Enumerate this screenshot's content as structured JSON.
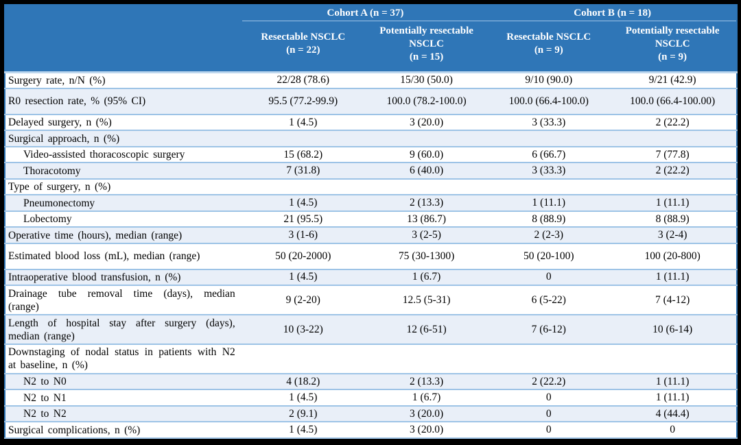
{
  "colors": {
    "header_bg": "#2F76B7",
    "header_text": "#FFFFFF",
    "band_bg": "#E9EFF8",
    "row_border": "#9DC3E6",
    "outer_border": "#2E75B6",
    "frame_bg": "#000000",
    "body_text": "#000000"
  },
  "table": {
    "cohorts": [
      {
        "label": "Cohort A (n = 37)"
      },
      {
        "label": "Cohort B (n = 18)"
      }
    ],
    "columns": [
      {
        "name": "Resectable NSCLC",
        "n": "(n = 22)"
      },
      {
        "name": "Potentially resectable NSCLC",
        "n": "(n = 15)"
      },
      {
        "name": "Resectable NSCLC",
        "n": "(n = 9)"
      },
      {
        "name": "Potentially resectable NSCLC",
        "n": "(n = 9)"
      }
    ],
    "rows": [
      {
        "label": "Surgery rate, n/N (%)",
        "values": [
          "22/28 (78.6)",
          "15/30 (50.0)",
          "9/10 (90.0)",
          "9/21 (42.9)"
        ]
      },
      {
        "label": "R0 resection rate, % (95% CI)",
        "tall": true,
        "values": [
          "95.5 (77.2-99.9)",
          "100.0 (78.2-100.0)",
          "100.0 (66.4-100.0)",
          "100.0 (66.4-100.00)"
        ]
      },
      {
        "label": "Delayed surgery, n (%)",
        "values": [
          "1 (4.5)",
          "3 (20.0)",
          "3 (33.3)",
          "2 (22.2)"
        ]
      },
      {
        "label": "Surgical approach, n (%)",
        "values": [
          "",
          "",
          "",
          ""
        ]
      },
      {
        "label": "Video-assisted thoracoscopic surgery",
        "indent": true,
        "values": [
          "15 (68.2)",
          "9 (60.0)",
          "6 (66.7)",
          "7 (77.8)"
        ]
      },
      {
        "label": "Thoracotomy",
        "indent": true,
        "values": [
          "7 (31.8)",
          "6 (40.0)",
          "3 (33.3)",
          "2 (22.2)"
        ]
      },
      {
        "label": "Type of surgery, n (%)",
        "values": [
          "",
          "",
          "",
          ""
        ]
      },
      {
        "label": "Pneumonectomy",
        "indent": true,
        "values": [
          "1 (4.5)",
          "2 (13.3)",
          "1 (11.1)",
          "1 (11.1)"
        ]
      },
      {
        "label": "Lobectomy",
        "indent": true,
        "values": [
          "21 (95.5)",
          "13 (86.7)",
          "8 (88.9)",
          "8 (88.9)"
        ]
      },
      {
        "label": "Operative time (hours), median (range)",
        "values": [
          "3 (1-6)",
          "3 (2-5)",
          "2 (2-3)",
          "3 (2-4)"
        ]
      },
      {
        "label": "Estimated blood loss (mL), median (range)",
        "tall": true,
        "values": [
          "50 (20-2000)",
          "75 (30-1300)",
          "50 (20-100)",
          "100 (20-800)"
        ]
      },
      {
        "label": "Intraoperative blood transfusion, n (%)",
        "values": [
          "1 (4.5)",
          "1 (6.7)",
          "0",
          "1 (11.1)"
        ]
      },
      {
        "label": "Drainage tube removal time (days), median (range)",
        "values": [
          "9 (2-20)",
          "12.5 (5-31)",
          "6 (5-22)",
          "7 (4-12)"
        ]
      },
      {
        "label": "Length of hospital stay after surgery (days), median (range)",
        "values": [
          "10 (3-22)",
          "12 (6-51)",
          "7 (6-12)",
          "10 (6-14)"
        ]
      },
      {
        "label": "Downstaging of nodal status in patients with N2 at baseline, n (%)",
        "values": [
          "",
          "",
          "",
          ""
        ]
      },
      {
        "label": "N2 to N0",
        "indent": true,
        "values": [
          "4 (18.2)",
          "2 (13.3)",
          "2 (22.2)",
          "1 (11.1)"
        ]
      },
      {
        "label": "N2 to N1",
        "indent": true,
        "values": [
          "1 (4.5)",
          "1 (6.7)",
          "0",
          "1 (11.1)"
        ]
      },
      {
        "label": "N2 to N2",
        "indent": true,
        "values": [
          "2 (9.1)",
          "3 (20.0)",
          "0",
          "4 (44.4)"
        ]
      },
      {
        "label": "Surgical complications, n (%)",
        "values": [
          "1 (4.5)",
          "3 (20.0)",
          "0",
          "0"
        ]
      }
    ]
  }
}
